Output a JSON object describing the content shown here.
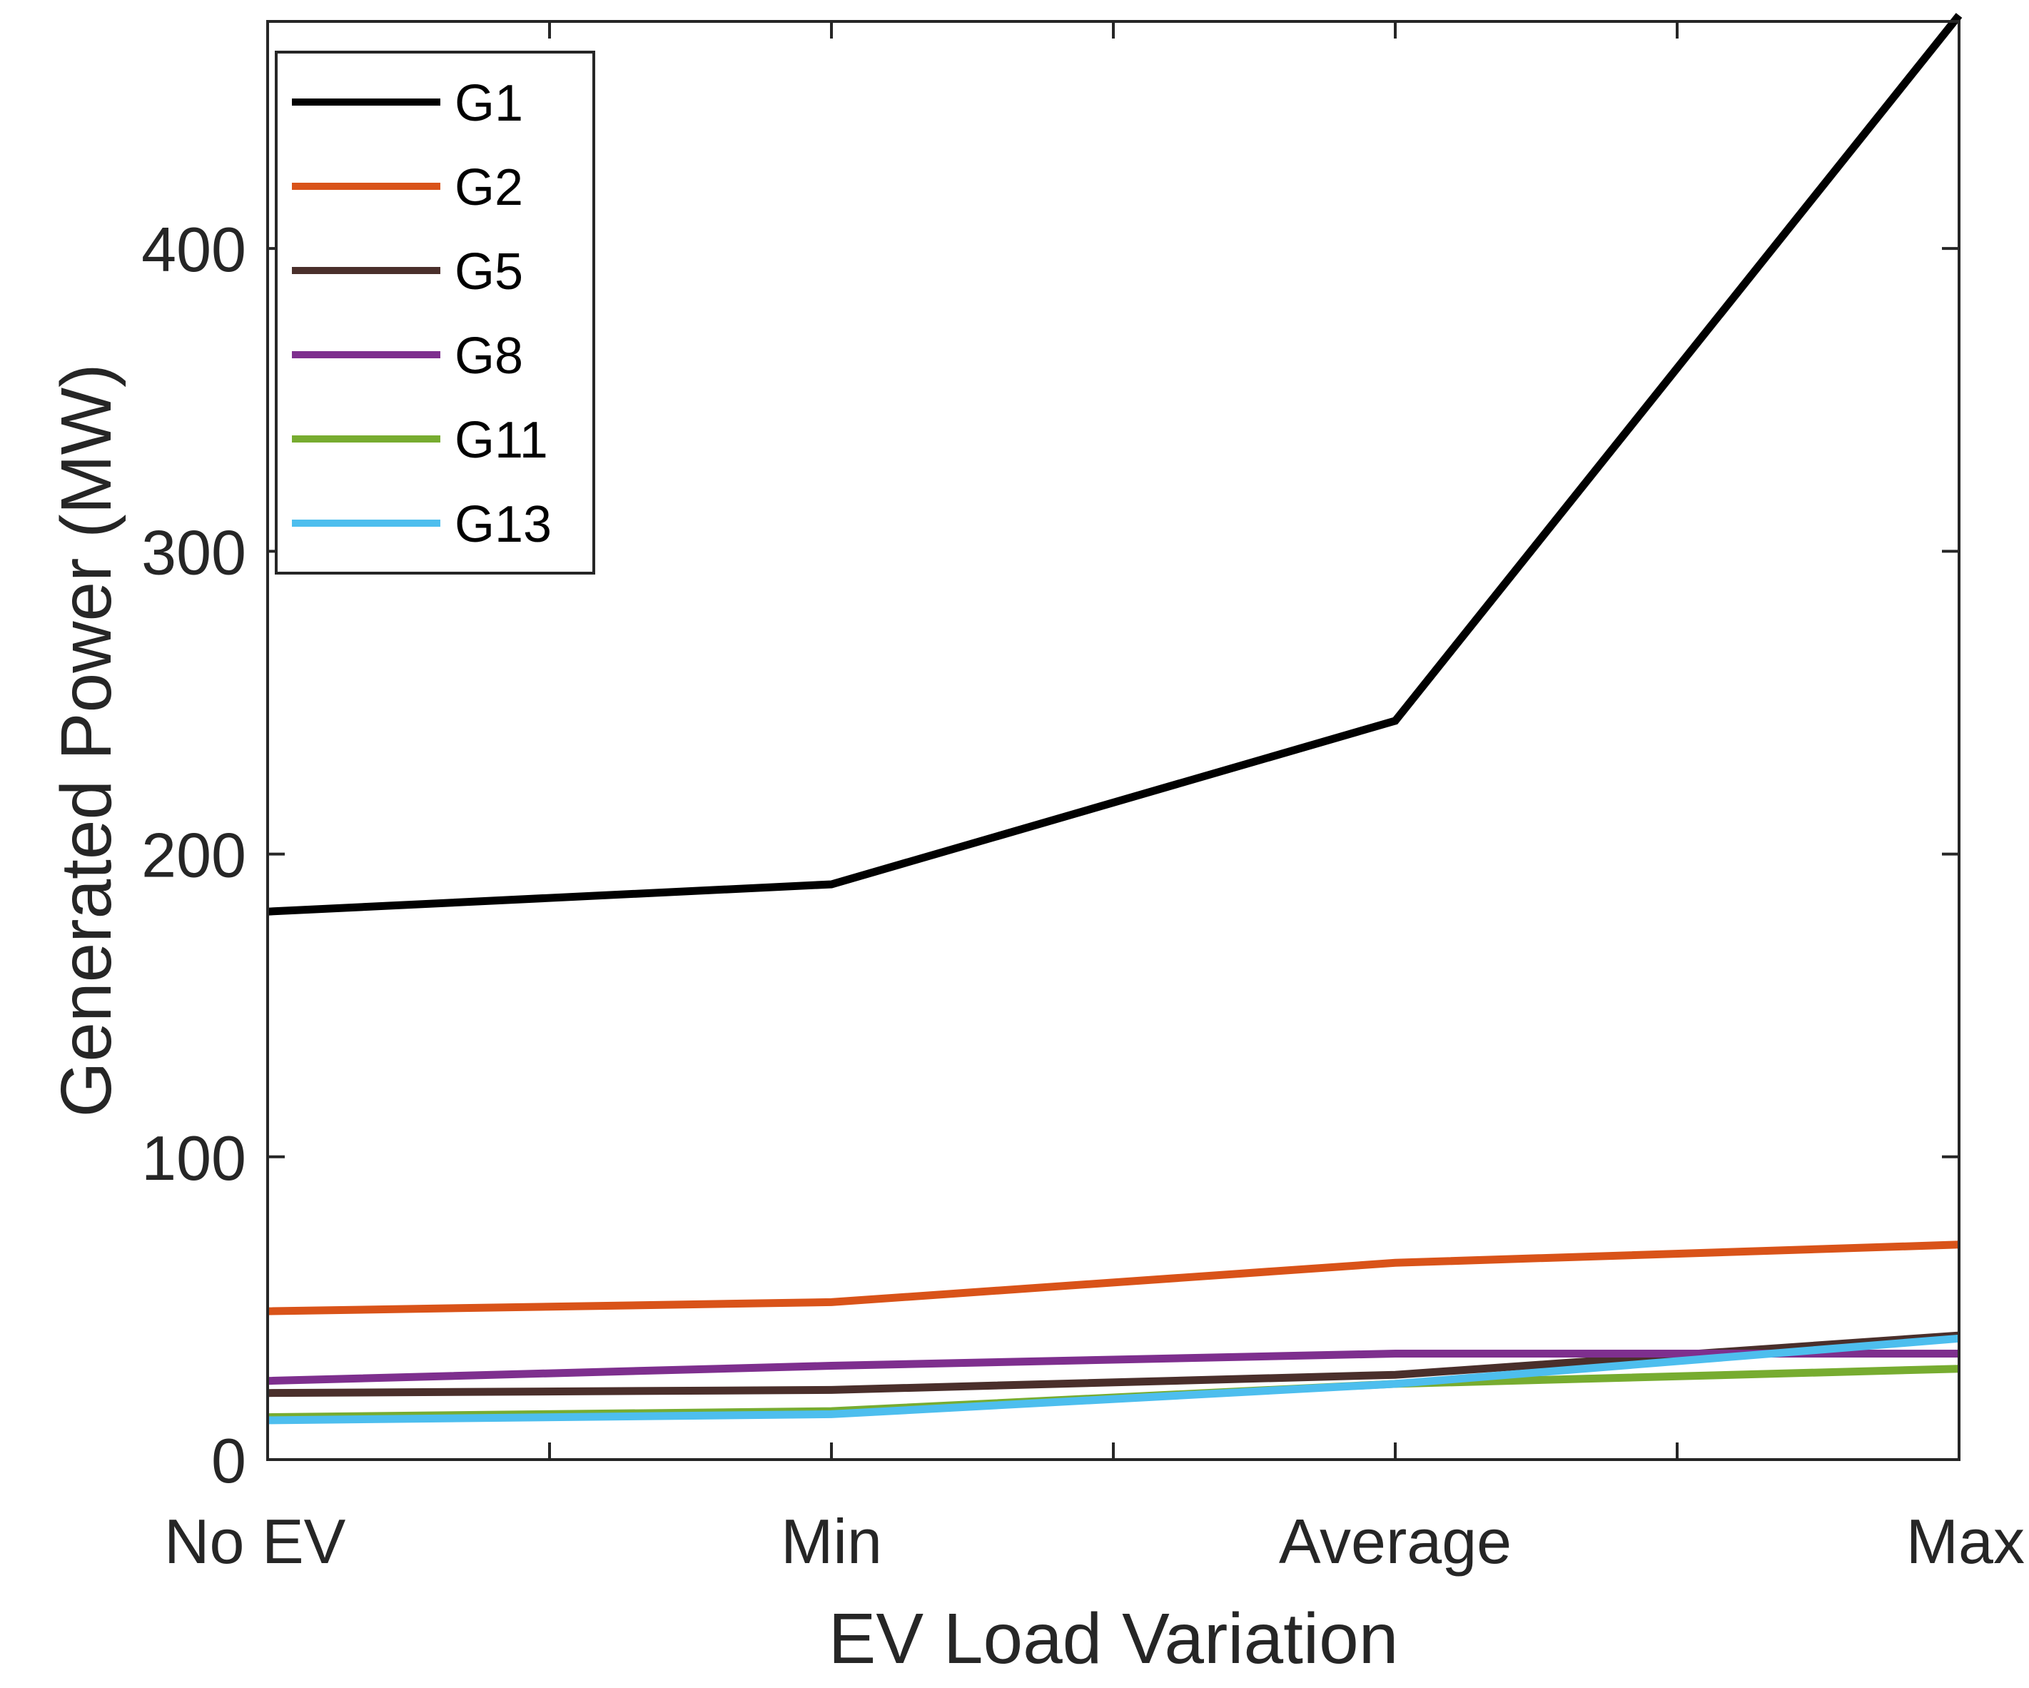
{
  "chart_data": {
    "type": "line",
    "title": "",
    "xlabel": "EV Load Variation",
    "ylabel": "Generated Power (MW)",
    "categories": [
      "No EV",
      "Min",
      "Average",
      "Max"
    ],
    "ylim": [
      0,
      475
    ],
    "yticks": [
      0,
      100,
      200,
      300,
      400
    ],
    "ytick_labels": [
      "0",
      "100",
      "200",
      "300",
      "400"
    ],
    "grid": false,
    "legend_position": "top-left",
    "series": [
      {
        "name": "G1",
        "color": "#000000",
        "values": [
          181,
          190,
          244,
          477
        ]
      },
      {
        "name": "G2",
        "color": "#D95319",
        "values": [
          49,
          52,
          65,
          71
        ]
      },
      {
        "name": "G5",
        "color": "#4A2F2B",
        "values": [
          22,
          23,
          28,
          41
        ]
      },
      {
        "name": "G8",
        "color": "#7E2F8E",
        "values": [
          26,
          31,
          35,
          35
        ]
      },
      {
        "name": "G11",
        "color": "#77AC30",
        "values": [
          14,
          16,
          25,
          30
        ]
      },
      {
        "name": "G13",
        "color": "#4DBEEE",
        "values": [
          13,
          15,
          25,
          40
        ]
      }
    ]
  }
}
